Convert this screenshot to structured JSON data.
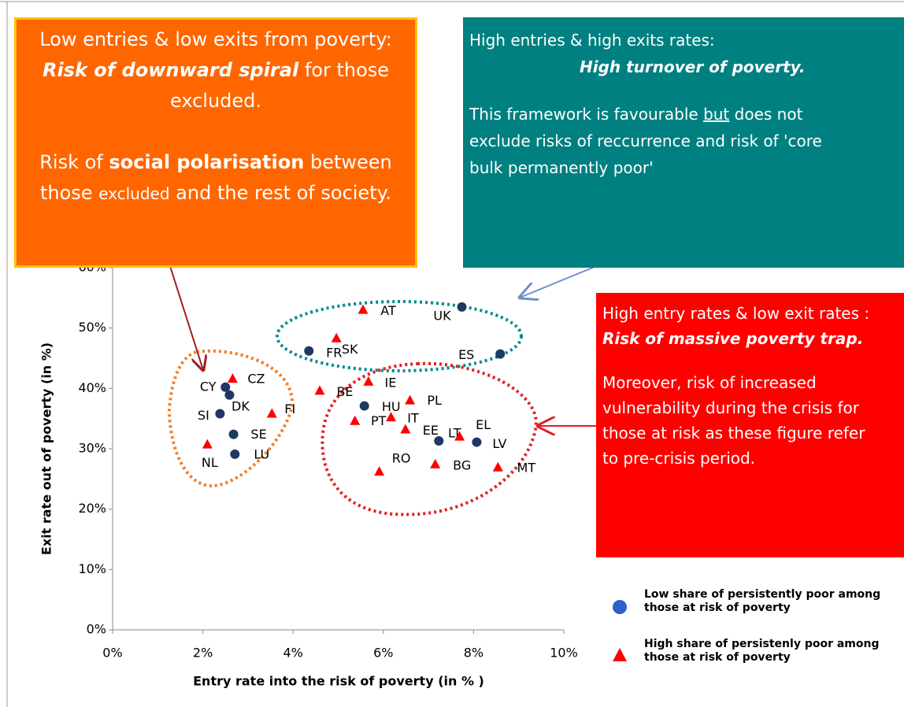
{
  "chart_data": {
    "type": "scatter",
    "xlabel": "Entry rate into the risk of poverty (in % )",
    "ylabel": "Exit rate out of poverty (in %)",
    "xlim": [
      0,
      10
    ],
    "ylim": [
      0,
      60
    ],
    "xticks": [
      {
        "value": 0,
        "label": "0%"
      },
      {
        "value": 2,
        "label": "2%"
      },
      {
        "value": 4,
        "label": "4%"
      },
      {
        "value": 6,
        "label": "6%"
      },
      {
        "value": 8,
        "label": "8%"
      },
      {
        "value": 10,
        "label": "10%"
      }
    ],
    "yticks": [
      {
        "value": 0,
        "label": "0%"
      },
      {
        "value": 10,
        "label": "10%"
      },
      {
        "value": 20,
        "label": "20%"
      },
      {
        "value": 30,
        "label": "30%"
      },
      {
        "value": 40,
        "label": "40%"
      },
      {
        "value": 50,
        "label": "50%"
      },
      {
        "value": 60,
        "label": "60%"
      }
    ],
    "series": [
      {
        "name": "Low share of persistently poor among those at risk of poverty",
        "color": "#1f3864",
        "legend_color": "#2f5fc8",
        "marker": "circle",
        "labels": [
          "UK",
          "FR",
          "ES",
          "CY",
          "DK",
          "SI",
          "SE",
          "LU",
          "HU",
          "LT",
          "LV"
        ],
        "x": [
          7.74,
          4.35,
          8.59,
          2.5,
          2.59,
          2.38,
          2.68,
          2.71,
          5.58,
          7.23,
          8.07
        ],
        "values": [
          53.5,
          46.2,
          45.7,
          40.2,
          38.9,
          35.8,
          32.4,
          29.1,
          37.1,
          31.3,
          31.1
        ]
      },
      {
        "name": "High share of persistenly poor among those at risk of poverty",
        "color": "#ff0000",
        "marker": "triangle",
        "labels": [
          "AT",
          "SK",
          "CZ",
          "BE",
          "IE",
          "PL",
          "FI",
          "PT",
          "IT",
          "EE",
          "EL",
          "NL",
          "RO",
          "BG",
          "MT"
        ],
        "x": [
          5.55,
          4.96,
          2.66,
          4.59,
          5.67,
          6.59,
          3.53,
          5.37,
          6.17,
          6.49,
          7.69,
          2.1,
          5.91,
          7.15,
          8.54
        ],
        "values": [
          53.0,
          48.3,
          41.6,
          39.6,
          41.1,
          38.0,
          35.8,
          34.6,
          35.2,
          33.2,
          32.0,
          30.7,
          26.2,
          27.4,
          26.9
        ]
      }
    ],
    "annotations": [
      {
        "lines": [
          [
            "Low entries & low exits from poverty:"
          ],
          [
            "Risk of downward spiral",
            "  for those"
          ],
          [
            "excluded."
          ],
          [
            "Risk of ",
            "social polarisation",
            " between"
          ],
          [
            "those ",
            "excluded",
            " and the rest of society."
          ]
        ]
      },
      {
        "lines": [
          [
            "High entries  & high exits rates:"
          ],
          [
            "High turnover of poverty."
          ],
          [
            "This framework is favourable ",
            "but",
            "  does not"
          ],
          [
            "exclude risks of reccurrence and risk of  'core"
          ],
          [
            "bulk permanently poor'"
          ]
        ]
      },
      {
        "lines": [
          [
            "High entry rates & low exit rates :"
          ],
          [
            "Risk of massive poverty trap."
          ],
          [
            "Moreover, risk of increased"
          ],
          [
            "vulnerability  during the crisis for"
          ],
          [
            "those at risk as these figure refer"
          ],
          [
            "to pre-crisis period."
          ]
        ]
      }
    ]
  }
}
